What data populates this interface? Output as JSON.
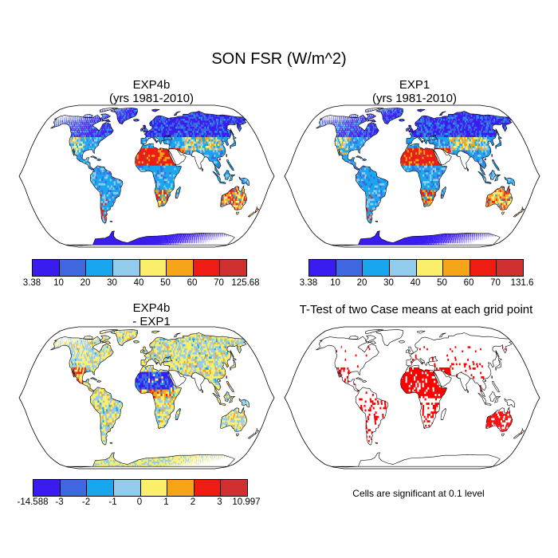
{
  "title": "SON FSR (W/m^2)",
  "panels": [
    {
      "id": "tl",
      "title_line1": "EXP4b",
      "title_line2": "(yrs 1981-2010)",
      "colorbar_labels": [
        "3.38",
        "10",
        "20",
        "30",
        "40",
        "50",
        "60",
        "70",
        "125.68"
      ]
    },
    {
      "id": "tr",
      "title_line1": "EXP1",
      "title_line2": "(yrs 1981-2010)",
      "colorbar_labels": [
        "3.38",
        "10",
        "20",
        "30",
        "40",
        "50",
        "60",
        "70",
        "131.6"
      ]
    },
    {
      "id": "bl",
      "title_line1": "EXP4b",
      "title_line2": "- EXP1",
      "colorbar_labels": [
        "-14.588",
        "-3",
        "-2",
        "-1",
        "0",
        "1",
        "2",
        "3",
        "10.997"
      ]
    },
    {
      "id": "br",
      "title_line1": "T-Test of two Case means at each grid point",
      "title_line2": ""
    }
  ],
  "significance_note": "Cells are significant at 0.1 level",
  "colors": {
    "scale": [
      "#3b1cf0",
      "#3f67e0",
      "#18a7ee",
      "#93cbec",
      "#fbee6b",
      "#f6a418",
      "#ee1c12",
      "#cf2f2f"
    ],
    "significant": "#ff0000",
    "ocean": "#ffffff",
    "coast": "#000000"
  },
  "map_projection": "Robinson (global)"
}
